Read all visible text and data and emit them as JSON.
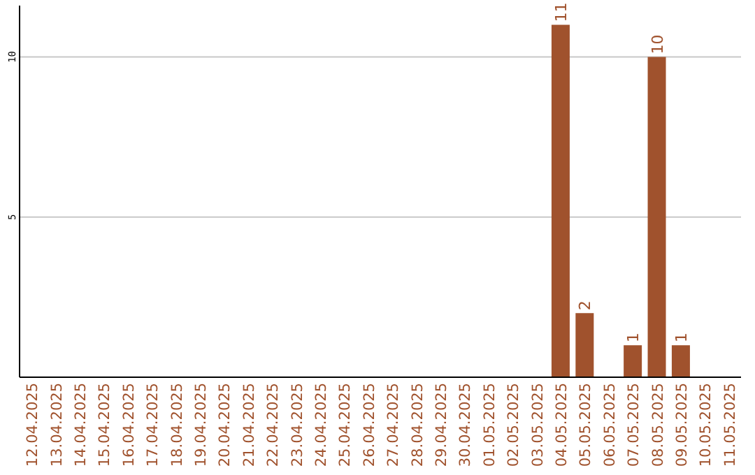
{
  "chart_data": {
    "type": "bar",
    "categories": [
      "12.04.2025",
      "13.04.2025",
      "14.04.2025",
      "15.04.2025",
      "16.04.2025",
      "17.04.2025",
      "18.04.2025",
      "19.04.2025",
      "20.04.2025",
      "21.04.2025",
      "22.04.2025",
      "23.04.2025",
      "24.04.2025",
      "25.04.2025",
      "26.04.2025",
      "27.04.2025",
      "28.04.2025",
      "29.04.2025",
      "30.04.2025",
      "01.05.2025",
      "02.05.2025",
      "03.05.2025",
      "04.05.2025",
      "05.05.2025",
      "06.05.2025",
      "07.05.2025",
      "08.05.2025",
      "09.05.2025",
      "10.05.2025",
      "11.05.2025"
    ],
    "values": [
      null,
      null,
      null,
      null,
      null,
      null,
      null,
      null,
      null,
      null,
      null,
      null,
      null,
      null,
      null,
      null,
      null,
      null,
      null,
      null,
      null,
      null,
      11,
      2,
      null,
      1,
      10,
      1,
      null,
      null
    ],
    "color": "#a0522d",
    "ylim": [
      0,
      11.6
    ],
    "yticks": [
      5,
      10
    ],
    "grid": "y",
    "data_labels": true
  }
}
